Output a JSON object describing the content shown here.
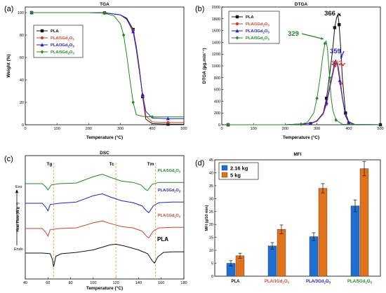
{
  "figure": {
    "panels": {
      "a": {
        "letter": "(a)"
      },
      "b": {
        "letter": "(b)"
      },
      "c": {
        "letter": "(c)"
      },
      "d": {
        "letter": "(d)"
      }
    }
  },
  "colors": {
    "PLA": "#111111",
    "PLA/1Gd2O3": "#d2402a",
    "PLA/3Gd2O3": "#2020d0",
    "PLA/5Gd2O3": "#1f8a1f",
    "bar_216": "#1f6fd1",
    "bar_5": "#e0721c",
    "guide": "#f0a040"
  },
  "chart_data": [
    {
      "id": "tga",
      "type": "line",
      "title": "TGA",
      "xlabel": "Temperature (°C)",
      "ylabel": "Weight (%)",
      "xlim": [
        0,
        500
      ],
      "ylim": [
        0,
        105
      ],
      "xticks": [
        0,
        100,
        200,
        300,
        400,
        500
      ],
      "yticks": [
        0,
        20,
        40,
        60,
        80,
        100
      ],
      "legend": "upper-left",
      "series": [
        {
          "name": "PLA",
          "color": "#111111",
          "marker": "square",
          "x": [
            20,
            100,
            200,
            250,
            300,
            320,
            340,
            350,
            360,
            370,
            380,
            400,
            450,
            500
          ],
          "y": [
            100,
            100,
            100,
            99.8,
            98,
            95,
            85,
            70,
            50,
            25,
            5,
            1,
            0.5,
            0.5
          ]
        },
        {
          "name": "PLA/1Gd2O3",
          "color": "#d2402a",
          "marker": "circle",
          "x": [
            20,
            100,
            200,
            250,
            300,
            320,
            340,
            350,
            360,
            370,
            380,
            400,
            450,
            500
          ],
          "y": [
            100,
            100,
            100,
            99.8,
            98,
            94,
            84,
            69,
            49,
            26,
            8,
            2.5,
            2,
            2
          ]
        },
        {
          "name": "PLA/3Gd2O3",
          "color": "#2020d0",
          "marker": "triangle",
          "x": [
            20,
            100,
            200,
            250,
            300,
            320,
            340,
            350,
            360,
            370,
            380,
            400,
            450,
            500
          ],
          "y": [
            100,
            100,
            100,
            99.8,
            98,
            94,
            83,
            67,
            47,
            27,
            12,
            6,
            5.5,
            5.5
          ]
        },
        {
          "name": "PLA/5Gd2O3",
          "color": "#1f8a1f",
          "marker": "diamond",
          "x": [
            20,
            100,
            200,
            250,
            280,
            300,
            310,
            320,
            330,
            340,
            350,
            370,
            400,
            450,
            500
          ],
          "y": [
            100,
            100,
            100,
            99.5,
            97,
            90,
            80,
            62,
            40,
            20,
            9,
            7.5,
            7,
            7,
            7
          ]
        }
      ]
    },
    {
      "id": "dtga",
      "type": "line",
      "title": "DTGA",
      "xlabel": "Temperature (°C)",
      "ylabel": "DTGA (µg.min⁻¹)",
      "xlim": [
        0,
        500
      ],
      "ylim": [
        0,
        2000
      ],
      "xticks": [
        0,
        100,
        200,
        300,
        400,
        500
      ],
      "yticks": [
        0,
        200,
        400,
        600,
        800,
        1000,
        1200,
        1400,
        1600,
        1800,
        2000
      ],
      "legend": "upper-left",
      "annotations": [
        {
          "text": "366",
          "color": "#111111",
          "x": 366,
          "y": 1870
        },
        {
          "text": "329",
          "color": "#1f8a1f",
          "x": 325,
          "y": 1420
        },
        {
          "text": "359",
          "color": "#2020d0",
          "x": 366,
          "y": 1100
        },
        {
          "text": "362",
          "color": "#d2402a",
          "x": 368,
          "y": 1030
        }
      ],
      "series": [
        {
          "name": "PLA",
          "color": "#111111",
          "marker": "square",
          "x": [
            20,
            100,
            200,
            280,
            300,
            320,
            330,
            340,
            350,
            356,
            362,
            366,
            370,
            375,
            380,
            390,
            400,
            420,
            500
          ],
          "y": [
            0,
            0,
            0,
            20,
            60,
            200,
            450,
            850,
            1300,
            1650,
            1820,
            1870,
            1700,
            1300,
            800,
            200,
            50,
            5,
            0
          ]
        },
        {
          "name": "PLA/1Gd2O3",
          "color": "#d2402a",
          "marker": "circle",
          "x": [
            20,
            100,
            200,
            280,
            300,
            320,
            330,
            340,
            350,
            356,
            362,
            368,
            375,
            380,
            390,
            400,
            420,
            500
          ],
          "y": [
            0,
            0,
            0,
            20,
            60,
            180,
            350,
            600,
            850,
            1000,
            1050,
            980,
            700,
            480,
            150,
            40,
            5,
            0
          ]
        },
        {
          "name": "PLA/3Gd2O3",
          "color": "#2020d0",
          "marker": "triangle",
          "x": [
            20,
            100,
            200,
            280,
            300,
            320,
            330,
            340,
            350,
            355,
            359,
            365,
            372,
            380,
            390,
            400,
            420,
            500
          ],
          "y": [
            0,
            0,
            0,
            20,
            70,
            200,
            380,
            650,
            900,
            1050,
            1100,
            1000,
            750,
            450,
            150,
            40,
            5,
            0
          ]
        },
        {
          "name": "PLA/5Gd2O3",
          "color": "#1f8a1f",
          "marker": "diamond",
          "x": [
            20,
            100,
            200,
            250,
            270,
            290,
            300,
            310,
            318,
            325,
            329,
            333,
            340,
            345,
            350,
            360,
            380,
            500
          ],
          "y": [
            0,
            0,
            0,
            10,
            40,
            200,
            450,
            800,
            1150,
            1380,
            1420,
            1300,
            800,
            450,
            250,
            80,
            10,
            0
          ]
        }
      ]
    },
    {
      "id": "dsc",
      "type": "line",
      "title": "DSC",
      "xlabel": "Temperature (°C)",
      "ylabel": "Heat Flow (W.g⁻¹)",
      "exo_label": "Exo",
      "endo_label": "Endo",
      "xlim": [
        40,
        180
      ],
      "xticks": [
        40,
        60,
        80,
        100,
        120,
        140,
        160,
        180
      ],
      "guides": [
        {
          "text": "Tg",
          "x": 65
        },
        {
          "text": "Tc",
          "x": 120
        },
        {
          "text": "Tm",
          "x": 155
        }
      ],
      "series": [
        {
          "name": "PLA/5Gd2O3",
          "label": "PLA/5Gd₂O₃",
          "color": "#1f8a1f",
          "x": [
            40,
            55,
            58,
            60,
            63,
            70,
            85,
            100,
            108,
            115,
            125,
            135,
            142,
            146,
            148,
            152,
            158,
            170,
            180
          ],
          "y": [
            0.8,
            0.8,
            0.55,
            0.3,
            0.7,
            0.8,
            0.85,
            1.35,
            1.55,
            1.3,
            1.0,
            0.9,
            0.7,
            0.35,
            0.25,
            0.75,
            0.9,
            0.9,
            0.9
          ]
        },
        {
          "name": "PLA/3Gd2O3",
          "label": "PLA/3Gd₂O₃",
          "color": "#2020d0",
          "x": [
            40,
            55,
            58,
            60,
            62,
            70,
            85,
            100,
            108,
            115,
            125,
            135,
            143,
            147,
            149,
            153,
            158,
            170,
            180
          ],
          "y": [
            0.8,
            0.8,
            0.5,
            0.2,
            0.7,
            0.8,
            0.9,
            1.4,
            1.55,
            1.3,
            1.0,
            0.85,
            0.6,
            0.2,
            0.05,
            0.6,
            0.85,
            0.9,
            0.9
          ]
        },
        {
          "name": "PLA/1Gd2O3",
          "label": "PLA/1Gd₂O₃",
          "color": "#d2402a",
          "x": [
            40,
            55,
            58,
            60,
            62,
            70,
            85,
            100,
            108,
            115,
            125,
            135,
            143,
            147,
            149,
            153,
            158,
            170,
            180
          ],
          "y": [
            0.8,
            0.8,
            0.5,
            0.2,
            0.7,
            0.8,
            0.85,
            1.25,
            1.4,
            1.2,
            0.95,
            0.85,
            0.6,
            0.2,
            0.05,
            0.6,
            0.85,
            0.9,
            0.9
          ]
        },
        {
          "name": "PLA",
          "label": "PLA",
          "color": "#111111",
          "x": [
            40,
            55,
            62,
            64,
            65,
            67,
            72,
            85,
            100,
            115,
            120,
            128,
            140,
            148,
            152,
            154,
            157,
            162,
            170,
            180
          ],
          "y": [
            0.8,
            0.8,
            0.75,
            0.3,
            -0.3,
            0.55,
            0.75,
            0.85,
            1.05,
            1.45,
            1.5,
            1.35,
            1.05,
            0.75,
            0.2,
            0.0,
            0.5,
            0.85,
            0.9,
            0.9
          ]
        }
      ]
    },
    {
      "id": "mfi",
      "type": "bar",
      "title": "MFI",
      "ylabel": "MFI (g/10 min)",
      "ylim": [
        0,
        45
      ],
      "yticks": [
        0,
        5,
        10,
        15,
        20,
        25,
        30,
        35,
        40,
        45
      ],
      "categories": [
        "PLA",
        "PLA/1Gd2O3",
        "PLA/3Gd2O3",
        "PLA/5Gd2O3"
      ],
      "category_labels": [
        "PLA",
        "PLA/1Gd₂O₃",
        "PLA/3Gd₂O₃",
        "PLA/5Gd₂O₃"
      ],
      "category_colors": [
        "#111111",
        "#d2402a",
        "#2020d0",
        "#1f8a1f"
      ],
      "legend": "upper-left",
      "series": [
        {
          "name": "2.16 kg",
          "color": "#1f6fd1",
          "values": [
            5.0,
            11.7,
            15.3,
            27.2
          ],
          "errors": [
            1.0,
            1.3,
            1.5,
            2.3
          ]
        },
        {
          "name": "5 kg",
          "color": "#e0721c",
          "values": [
            7.9,
            18.1,
            34.0,
            41.6
          ],
          "errors": [
            1.0,
            1.7,
            1.8,
            2.8
          ]
        }
      ]
    }
  ]
}
